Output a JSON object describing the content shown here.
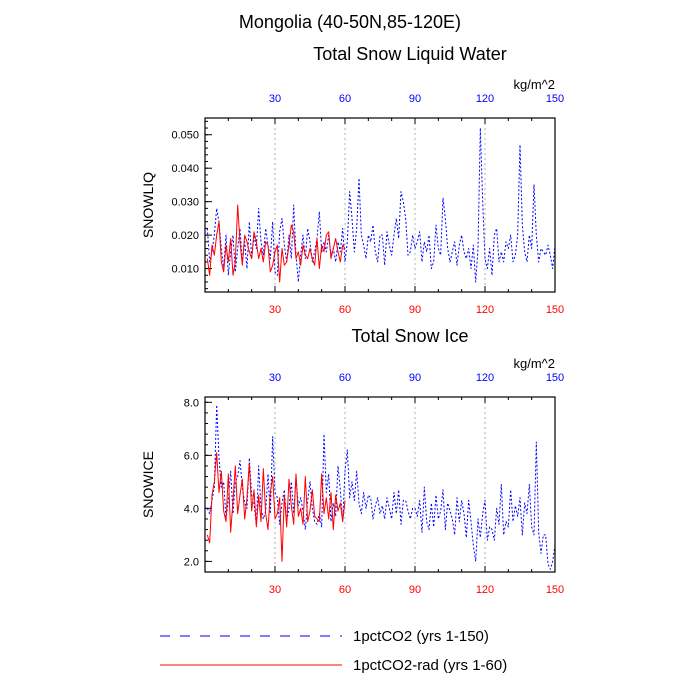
{
  "header": {
    "region_title": "Mongolia (40-50N,85-120E)"
  },
  "units": "kg/m^2",
  "colors": {
    "series_a": "#0000ff",
    "series_b": "#ff0000",
    "grid": "#b0b0b0",
    "axis": "#000000"
  },
  "legend": [
    {
      "label": "1pctCO2 (yrs 1-150)",
      "color": "#0000ff",
      "style": "dashed"
    },
    {
      "label": "1pctCO2-rad (yrs 1-60)",
      "color": "#ff0000",
      "style": "solid"
    }
  ],
  "chart_data": [
    {
      "type": "line",
      "title": "Total Snow Liquid Water",
      "ylabel": "SNOWLIQ",
      "units": "kg/m^2",
      "xlim": [
        0,
        150
      ],
      "ylim": [
        0.003,
        0.055
      ],
      "xticks": [
        30,
        60,
        90,
        120,
        150
      ],
      "xtick_labels": [
        "30",
        "60",
        "90",
        "120",
        "150"
      ],
      "yticks": [
        0.01,
        0.02,
        0.03,
        0.04,
        0.05
      ],
      "ytick_labels": [
        "0.010",
        "0.020",
        "0.030",
        "0.040",
        "0.050"
      ],
      "grid": "vertical dashed at x ticks",
      "series": [
        {
          "name": "1pctCO2 (yrs 1-150)",
          "color": "#0000ff",
          "x_start": 1,
          "values": [
            0.022,
            0.012,
            0.015,
            0.02,
            0.028,
            0.024,
            0.016,
            0.01,
            0.02,
            0.008,
            0.015,
            0.02,
            0.009,
            0.016,
            0.022,
            0.012,
            0.018,
            0.01,
            0.024,
            0.013,
            0.02,
            0.016,
            0.028,
            0.018,
            0.014,
            0.022,
            0.017,
            0.013,
            0.024,
            0.009,
            0.008,
            0.021,
            0.025,
            0.017,
            0.012,
            0.02,
            0.013,
            0.029,
            0.014,
            0.006,
            0.014,
            0.02,
            0.013,
            0.022,
            0.018,
            0.012,
            0.015,
            0.019,
            0.027,
            0.015,
            0.018,
            0.015,
            0.02,
            0.014,
            0.016,
            0.012,
            0.018,
            0.015,
            0.022,
            0.012,
            0.018,
            0.033,
            0.025,
            0.015,
            0.022,
            0.037,
            0.02,
            0.017,
            0.013,
            0.02,
            0.018,
            0.023,
            0.015,
            0.012,
            0.02,
            0.02,
            0.011,
            0.021,
            0.017,
            0.014,
            0.02,
            0.025,
            0.019,
            0.033,
            0.03,
            0.025,
            0.014,
            0.015,
            0.02,
            0.016,
            0.018,
            0.021,
            0.012,
            0.018,
            0.015,
            0.02,
            0.01,
            0.012,
            0.023,
            0.016,
            0.014,
            0.031,
            0.025,
            0.016,
            0.012,
            0.015,
            0.018,
            0.011,
            0.017,
            0.02,
            0.015,
            0.013,
            0.016,
            0.01,
            0.017,
            0.006,
            0.016,
            0.052,
            0.03,
            0.013,
            0.01,
            0.016,
            0.008,
            0.02,
            0.022,
            0.012,
            0.015,
            0.012,
            0.018,
            0.016,
            0.02,
            0.012,
            0.014,
            0.02,
            0.047,
            0.023,
            0.015,
            0.012,
            0.02,
            0.016,
            0.035,
            0.02,
            0.012,
            0.016,
            0.015,
            0.014,
            0.017,
            0.014,
            0.01,
            0.017
          ]
        },
        {
          "name": "1pctCO2-rad (yrs 1-60)",
          "color": "#ff0000",
          "x_start": 1,
          "values": [
            0.013,
            0.008,
            0.017,
            0.014,
            0.02,
            0.024,
            0.012,
            0.009,
            0.017,
            0.012,
            0.019,
            0.008,
            0.012,
            0.029,
            0.018,
            0.011,
            0.02,
            0.018,
            0.015,
            0.013,
            0.021,
            0.018,
            0.013,
            0.016,
            0.012,
            0.018,
            0.017,
            0.009,
            0.011,
            0.015,
            0.017,
            0.006,
            0.016,
            0.011,
            0.012,
            0.017,
            0.023,
            0.021,
            0.013,
            0.015,
            0.011,
            0.017,
            0.014,
            0.013,
            0.016,
            0.013,
            0.011,
            0.019,
            0.01,
            0.017,
            0.015,
            0.02,
            0.021,
            0.013,
            0.016,
            0.019,
            0.015,
            0.012,
            0.017,
            0.016
          ]
        }
      ]
    },
    {
      "type": "line",
      "title": "Total Snow Ice",
      "ylabel": "SNOWICE",
      "units": "kg/m^2",
      "xlim": [
        0,
        150
      ],
      "ylim": [
        1.6,
        8.2
      ],
      "xticks": [
        30,
        60,
        90,
        120,
        150
      ],
      "xtick_labels": [
        "30",
        "60",
        "90",
        "120",
        "150"
      ],
      "yticks": [
        2,
        4,
        6,
        8
      ],
      "ytick_labels": [
        "2.0",
        "4.0",
        "6.0",
        "8.0"
      ],
      "grid": "vertical dashed at x ticks",
      "series": [
        {
          "name": "1pctCO2 (yrs 1-150)",
          "color": "#0000ff",
          "x_start": 1,
          "values": [
            4.0,
            3.8,
            4.3,
            4.8,
            7.9,
            5.9,
            4.8,
            5.0,
            3.6,
            4.3,
            5.4,
            3.8,
            5.0,
            5.2,
            5.8,
            4.8,
            4.2,
            4.0,
            5.9,
            4.5,
            4.2,
            3.4,
            5.6,
            4.0,
            3.6,
            3.9,
            5.3,
            3.8,
            6.7,
            4.6,
            4.4,
            3.4,
            4.2,
            4.7,
            3.5,
            4.0,
            5.0,
            3.8,
            5.2,
            4.1,
            4.4,
            3.9,
            3.2,
            4.3,
            5.0,
            4.0,
            3.5,
            3.4,
            3.8,
            3.3,
            6.8,
            4.6,
            5.3,
            3.5,
            4.2,
            3.7,
            5.6,
            4.7,
            3.5,
            5.4,
            6.2,
            4.4,
            5.0,
            4.3,
            5.4,
            4.2,
            3.8,
            4.6,
            4.0,
            4.5,
            4.4,
            3.6,
            4.1,
            4.4,
            3.8,
            4.1,
            3.6,
            4.4,
            4.0,
            3.6,
            4.6,
            3.8,
            4.7,
            3.4,
            4.3,
            4.3,
            3.9,
            3.6,
            4.0,
            4.0,
            3.7,
            4.3,
            3.1,
            4.8,
            3.5,
            3.2,
            4.2,
            3.3,
            4.5,
            3.6,
            3.9,
            4.7,
            3.2,
            4.2,
            3.9,
            3.6,
            3.0,
            4.4,
            3.5,
            4.3,
            3.8,
            2.9,
            4.3,
            3.5,
            2.6,
            2.0,
            3.6,
            2.9,
            3.8,
            4.3,
            2.8,
            3.3,
            3.2,
            2.8,
            4.0,
            3.4,
            4.9,
            3.0,
            3.5,
            3.3,
            4.7,
            3.5,
            4.1,
            3.7,
            4.4,
            3.0,
            4.2,
            3.8,
            4.9,
            3.3,
            3.0,
            6.5,
            3.1,
            2.3,
            3.0,
            3.0,
            1.9,
            1.7,
            2.0,
            2.6
          ]
        },
        {
          "name": "1pctCO2-rad (yrs 1-60)",
          "color": "#ff0000",
          "x_start": 1,
          "values": [
            3.0,
            2.7,
            4.5,
            5.0,
            6.1,
            4.6,
            5.4,
            3.9,
            3.5,
            5.3,
            3.1,
            4.3,
            5.6,
            3.8,
            4.5,
            5.1,
            3.6,
            4.4,
            5.7,
            3.9,
            4.7,
            3.3,
            4.5,
            3.5,
            5.5,
            3.8,
            3.2,
            4.6,
            5.2,
            3.6,
            3.8,
            4.4,
            2.0,
            4.5,
            3.3,
            5.1,
            4.1,
            3.4,
            5.3,
            3.7,
            4.0,
            3.4,
            5.2,
            3.5,
            3.9,
            4.7,
            3.7,
            3.6,
            3.5,
            5.3,
            3.8,
            4.4,
            3.6,
            4.6,
            3.2,
            4.5,
            3.9,
            4.2,
            3.5,
            4.3
          ]
        }
      ]
    }
  ]
}
